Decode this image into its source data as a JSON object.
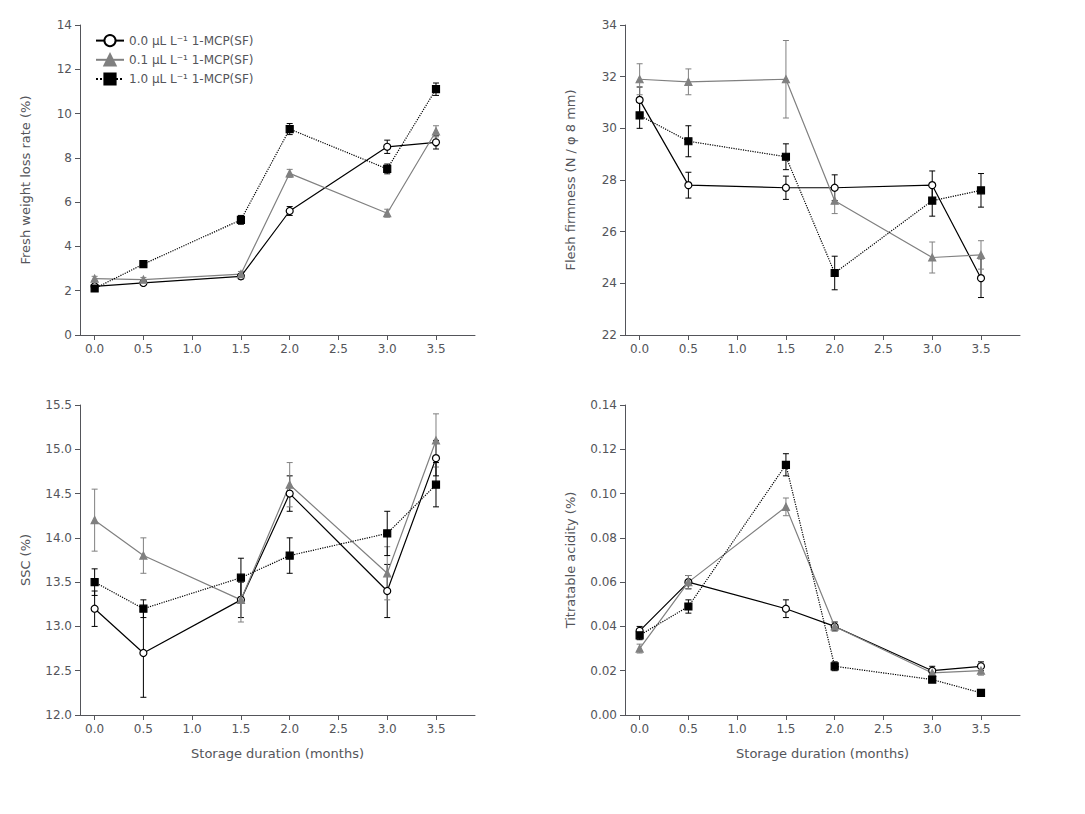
{
  "chart_data": [
    {
      "type": "line",
      "ylabel": "Fresh weight loss rate (%)",
      "x": [
        0.0,
        0.5,
        1.5,
        2.0,
        3.0,
        3.5
      ],
      "xlim": [
        -0.15,
        3.9
      ],
      "xticks": [
        {
          "value": 0,
          "label": "0.0"
        },
        0.5,
        {
          "value": 1,
          "label": "1.0"
        },
        1.5,
        {
          "value": 2,
          "label": "2.0"
        },
        2.5,
        {
          "value": 3,
          "label": "3.0"
        },
        3.5
      ],
      "ylim": [
        0,
        14
      ],
      "yticks": [
        0,
        2,
        4,
        6,
        8,
        10,
        12,
        14
      ],
      "grid": false,
      "legend": "upper left",
      "series": [
        {
          "name": "0.0 μL L⁻¹ 1-MCP(SF)",
          "color": "#000000",
          "marker": "open_circle",
          "line_style": "solid",
          "values": [
            2.2,
            2.35,
            2.65,
            5.6,
            8.5,
            8.7
          ],
          "errors": [
            0.08,
            0.08,
            0.12,
            0.2,
            0.3,
            0.3
          ]
        },
        {
          "name": "0.1 μL L⁻¹ 1-MCP(SF)",
          "color": "#808080",
          "marker": "triangle",
          "line_style": "solid",
          "values": [
            2.55,
            2.5,
            2.75,
            7.3,
            5.5,
            9.2
          ],
          "errors": [
            0.1,
            0.1,
            0.12,
            0.18,
            0.18,
            0.25
          ]
        },
        {
          "name": "1.0 μL L⁻¹ 1-MCP(SF)",
          "color": "#000000",
          "marker": "square",
          "line_style": "dotted",
          "values": [
            2.1,
            3.2,
            5.2,
            9.3,
            7.5,
            11.1
          ],
          "errors": [
            0.1,
            0.15,
            0.2,
            0.25,
            0.22,
            0.28
          ]
        }
      ]
    },
    {
      "type": "line",
      "ylabel": "Flesh firmness (N / φ 8 mm)",
      "x": [
        0.0,
        0.5,
        1.5,
        2.0,
        3.0,
        3.5
      ],
      "xlim": [
        -0.15,
        3.9
      ],
      "xticks": [
        {
          "value": 0,
          "label": "0.0"
        },
        0.5,
        {
          "value": 1,
          "label": "1.0"
        },
        1.5,
        {
          "value": 2,
          "label": "2.0"
        },
        2.5,
        {
          "value": 3,
          "label": "3.0"
        },
        3.5
      ],
      "ylim": [
        22,
        34
      ],
      "yticks": [
        22,
        24,
        26,
        28,
        30,
        32,
        34
      ],
      "grid": false,
      "series": [
        {
          "color": "#000000",
          "marker": "open_circle",
          "line_style": "solid",
          "values": [
            31.1,
            27.8,
            27.7,
            27.7,
            27.8,
            24.2
          ],
          "errors": [
            0.5,
            0.5,
            0.45,
            0.5,
            0.55,
            0.75
          ]
        },
        {
          "color": "#808080",
          "marker": "triangle",
          "line_style": "solid",
          "values": [
            31.9,
            31.8,
            31.9,
            27.2,
            25.0,
            25.1
          ],
          "errors": [
            0.6,
            0.5,
            1.5,
            0.5,
            0.6,
            0.55
          ]
        },
        {
          "color": "#000000",
          "marker": "square",
          "line_style": "dotted",
          "values": [
            30.5,
            29.5,
            28.9,
            24.4,
            27.2,
            27.6
          ],
          "errors": [
            0.5,
            0.6,
            0.5,
            0.65,
            0.6,
            0.65
          ]
        }
      ]
    },
    {
      "type": "line",
      "ylabel": "SSC (%)",
      "xlabel": "Storage duration (months)",
      "x": [
        0.0,
        0.5,
        1.5,
        2.0,
        3.0,
        3.5
      ],
      "xlim": [
        -0.15,
        3.9
      ],
      "xticks": [
        {
          "value": 0,
          "label": "0.0"
        },
        0.5,
        {
          "value": 1,
          "label": "1.0"
        },
        1.5,
        {
          "value": 2,
          "label": "2.0"
        },
        2.5,
        {
          "value": 3,
          "label": "3.0"
        },
        3.5
      ],
      "ylim": [
        12.0,
        15.5
      ],
      "yticks": [
        {
          "value": 12,
          "label": "12.0"
        },
        12.5,
        {
          "value": 13,
          "label": "13.0"
        },
        13.5,
        {
          "value": 14,
          "label": "14.0"
        },
        14.5,
        {
          "value": 15,
          "label": "15.0"
        },
        15.5
      ],
      "grid": false,
      "series": [
        {
          "color": "#000000",
          "marker": "open_circle",
          "line_style": "solid",
          "values": [
            13.2,
            12.7,
            13.3,
            14.5,
            13.4,
            14.9
          ],
          "errors": [
            0.2,
            0.5,
            0.2,
            0.2,
            0.3,
            0.2
          ]
        },
        {
          "color": "#808080",
          "marker": "triangle",
          "line_style": "solid",
          "values": [
            14.2,
            13.8,
            13.3,
            14.6,
            13.6,
            15.1
          ],
          "errors": [
            0.35,
            0.2,
            0.25,
            0.25,
            0.3,
            0.3
          ]
        },
        {
          "color": "#000000",
          "marker": "square",
          "line_style": "dotted",
          "values": [
            13.5,
            13.2,
            13.55,
            13.8,
            14.05,
            14.6
          ],
          "errors": [
            0.15,
            0.1,
            0.22,
            0.2,
            0.25,
            0.25
          ]
        }
      ]
    },
    {
      "type": "line",
      "ylabel": "Titratable acidity (%)",
      "xlabel": "Storage duration (months)",
      "x": [
        0.0,
        0.5,
        1.5,
        2.0,
        3.0,
        3.5
      ],
      "xlim": [
        -0.15,
        3.9
      ],
      "xticks": [
        {
          "value": 0,
          "label": "0.0"
        },
        0.5,
        {
          "value": 1,
          "label": "1.0"
        },
        1.5,
        {
          "value": 2,
          "label": "2.0"
        },
        2.5,
        {
          "value": 3,
          "label": "3.0"
        },
        3.5
      ],
      "ylim": [
        0.0,
        0.14
      ],
      "yticks": [
        {
          "value": 0,
          "label": "0.00"
        },
        0.02,
        0.04,
        0.06,
        0.08,
        {
          "value": 0.1,
          "label": "0.10"
        },
        0.12,
        0.14
      ],
      "grid": false,
      "series": [
        {
          "color": "#000000",
          "marker": "open_circle",
          "line_style": "solid",
          "values": [
            0.038,
            0.06,
            0.048,
            0.04,
            0.02,
            0.022
          ],
          "errors": [
            0.002,
            0.003,
            0.004,
            0.002,
            0.002,
            0.002
          ]
        },
        {
          "color": "#808080",
          "marker": "triangle",
          "line_style": "solid",
          "values": [
            0.03,
            0.06,
            0.094,
            0.04,
            0.019,
            0.02
          ],
          "errors": [
            0.002,
            0.003,
            0.004,
            0.002,
            0.001,
            0.002
          ]
        },
        {
          "color": "#000000",
          "marker": "square",
          "line_style": "dotted",
          "values": [
            0.036,
            0.049,
            0.113,
            0.022,
            0.016,
            0.01
          ],
          "errors": [
            0.002,
            0.003,
            0.005,
            0.002,
            0.001,
            0.001
          ]
        }
      ]
    }
  ]
}
